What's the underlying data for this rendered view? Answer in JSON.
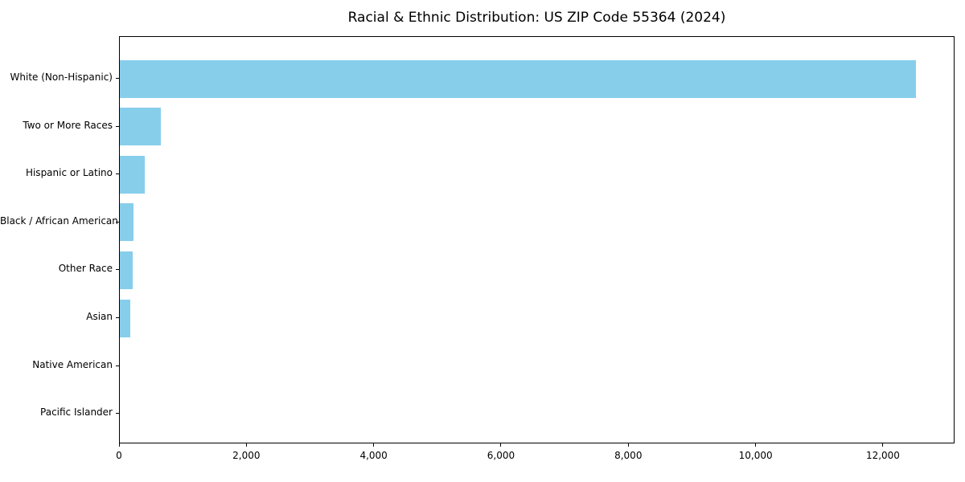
{
  "title": "Racial & Ethnic Distribution: US ZIP Code 55364 (2024)",
  "colors": {
    "bar": "#87CEEB",
    "axis": "#000000",
    "background": "#FFFFFF",
    "text": "#000000"
  },
  "chart_data": {
    "type": "bar",
    "orientation": "horizontal",
    "title": "Racial & Ethnic Distribution: US ZIP Code 55364 (2024)",
    "xlabel": "",
    "ylabel": "",
    "categories": [
      "White (Non-Hispanic)",
      "Two or More Races",
      "Hispanic or Latino",
      "Black / African American",
      "Other Race",
      "Asian",
      "Native American",
      "Pacific Islander"
    ],
    "values": [
      12500,
      650,
      395,
      210,
      205,
      170,
      0,
      0
    ],
    "xlim": [
      0,
      13125
    ],
    "x_ticks": [
      0,
      2000,
      4000,
      6000,
      8000,
      10000,
      12000
    ],
    "x_tick_labels": [
      "0",
      "2,000",
      "4,000",
      "6,000",
      "8,000",
      "10,000",
      "12,000"
    ],
    "bar_color": "#87CEEB",
    "grid": false,
    "legend": null
  }
}
